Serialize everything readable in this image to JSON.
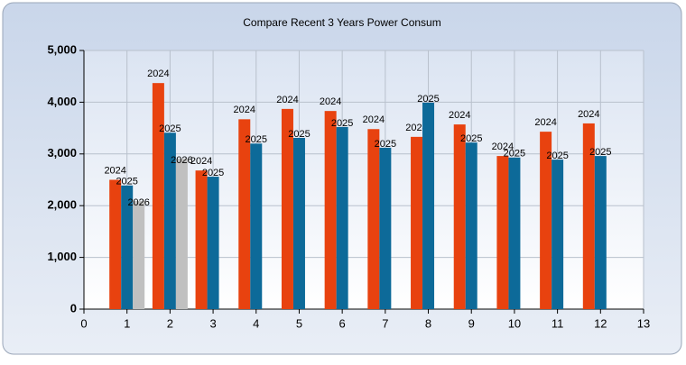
{
  "chart_data": {
    "type": "bar",
    "title": "Compare Recent 3 Years Power Consum",
    "x": [
      1,
      2,
      3,
      4,
      5,
      6,
      7,
      8,
      9,
      10,
      11,
      12
    ],
    "series": [
      {
        "name": "2024",
        "color": "#e8420f",
        "values": [
          2500,
          4370,
          2680,
          3670,
          3870,
          3830,
          3480,
          3330,
          3570,
          2960,
          3430,
          3590
        ]
      },
      {
        "name": "2025",
        "color": "#0d6a99",
        "values": [
          2390,
          3410,
          2560,
          3200,
          3310,
          3520,
          3120,
          3990,
          3220,
          2930,
          2890,
          2960
        ]
      },
      {
        "name": "2026",
        "color": "#c0c0c0",
        "values": [
          2090,
          2910,
          null,
          null,
          null,
          null,
          null,
          null,
          null,
          null,
          null,
          null
        ]
      }
    ],
    "xlim": [
      0,
      13
    ],
    "xticks": [
      0,
      1,
      2,
      3,
      4,
      5,
      6,
      7,
      8,
      9,
      10,
      11,
      12,
      13
    ],
    "ylim": [
      0,
      5000
    ],
    "yticks": [
      0,
      {
        "value": 1000,
        "label": "1,000"
      },
      {
        "value": 2000,
        "label": "2,000"
      },
      {
        "value": 3000,
        "label": "3,000"
      },
      {
        "value": 4000,
        "label": "4,000"
      },
      {
        "value": 5000,
        "label": "5,000"
      }
    ],
    "grid": true
  }
}
